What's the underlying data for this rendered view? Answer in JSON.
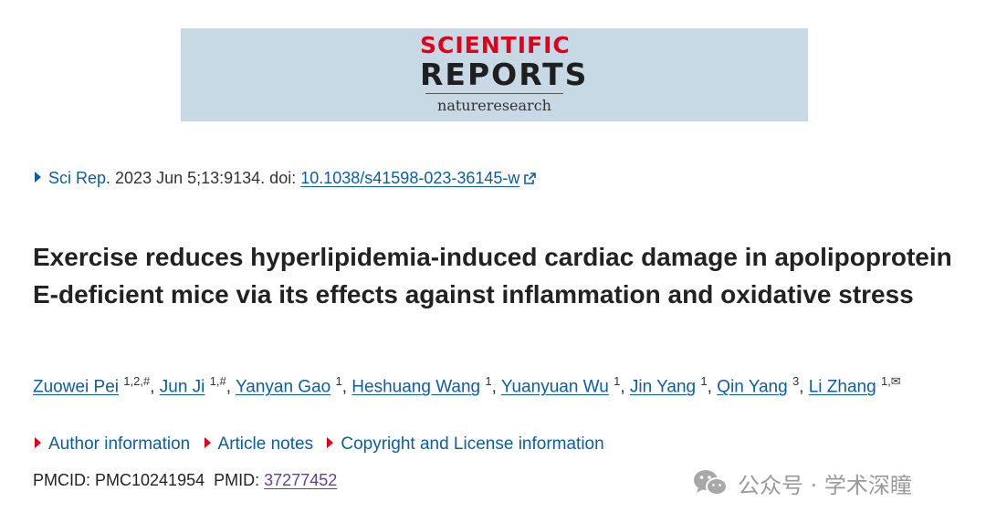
{
  "journal_logo": {
    "line1": "SCIENTIFIC",
    "line2": "REPORTS",
    "line3": "natureresearch"
  },
  "citation": {
    "journal": "Sci Rep",
    "after_journal": ". 2023 Jun 5;13:9134. doi: ",
    "doi": "10.1038/s41598-023-36145-w"
  },
  "article": {
    "title": "Exercise reduces hyperlipidemia-induced cardiac damage in apolipoprotein E-deficient mice via its effects against inflammation and oxidative stress"
  },
  "authors": [
    {
      "name": "Zuowei Pei",
      "aff": "1,2,#"
    },
    {
      "name": "Jun Ji",
      "aff": "1,#"
    },
    {
      "name": "Yanyan Gao",
      "aff": "1"
    },
    {
      "name": "Heshuang Wang",
      "aff": "1"
    },
    {
      "name": "Yuanyuan Wu",
      "aff": "1"
    },
    {
      "name": "Jin Yang",
      "aff": "1"
    },
    {
      "name": "Qin Yang",
      "aff": "3"
    },
    {
      "name": "Li Zhang",
      "aff": "1,✉"
    }
  ],
  "sections": {
    "author_info": "Author information",
    "article_notes": "Article notes",
    "copyright": "Copyright and License information"
  },
  "ids": {
    "pmcid_label": "PMCID:",
    "pmcid": "PMC10241954",
    "pmid_label": "PMID:",
    "pmid": "37277452"
  },
  "watermark": {
    "text": "公众号 · 学术深瞳",
    "icon": "wechat-icon"
  },
  "colors": {
    "link": "#0b5da8",
    "accent_red": "#e2001a",
    "visited": "#5f3fa5",
    "banner_bg": "#c8d9e6"
  }
}
